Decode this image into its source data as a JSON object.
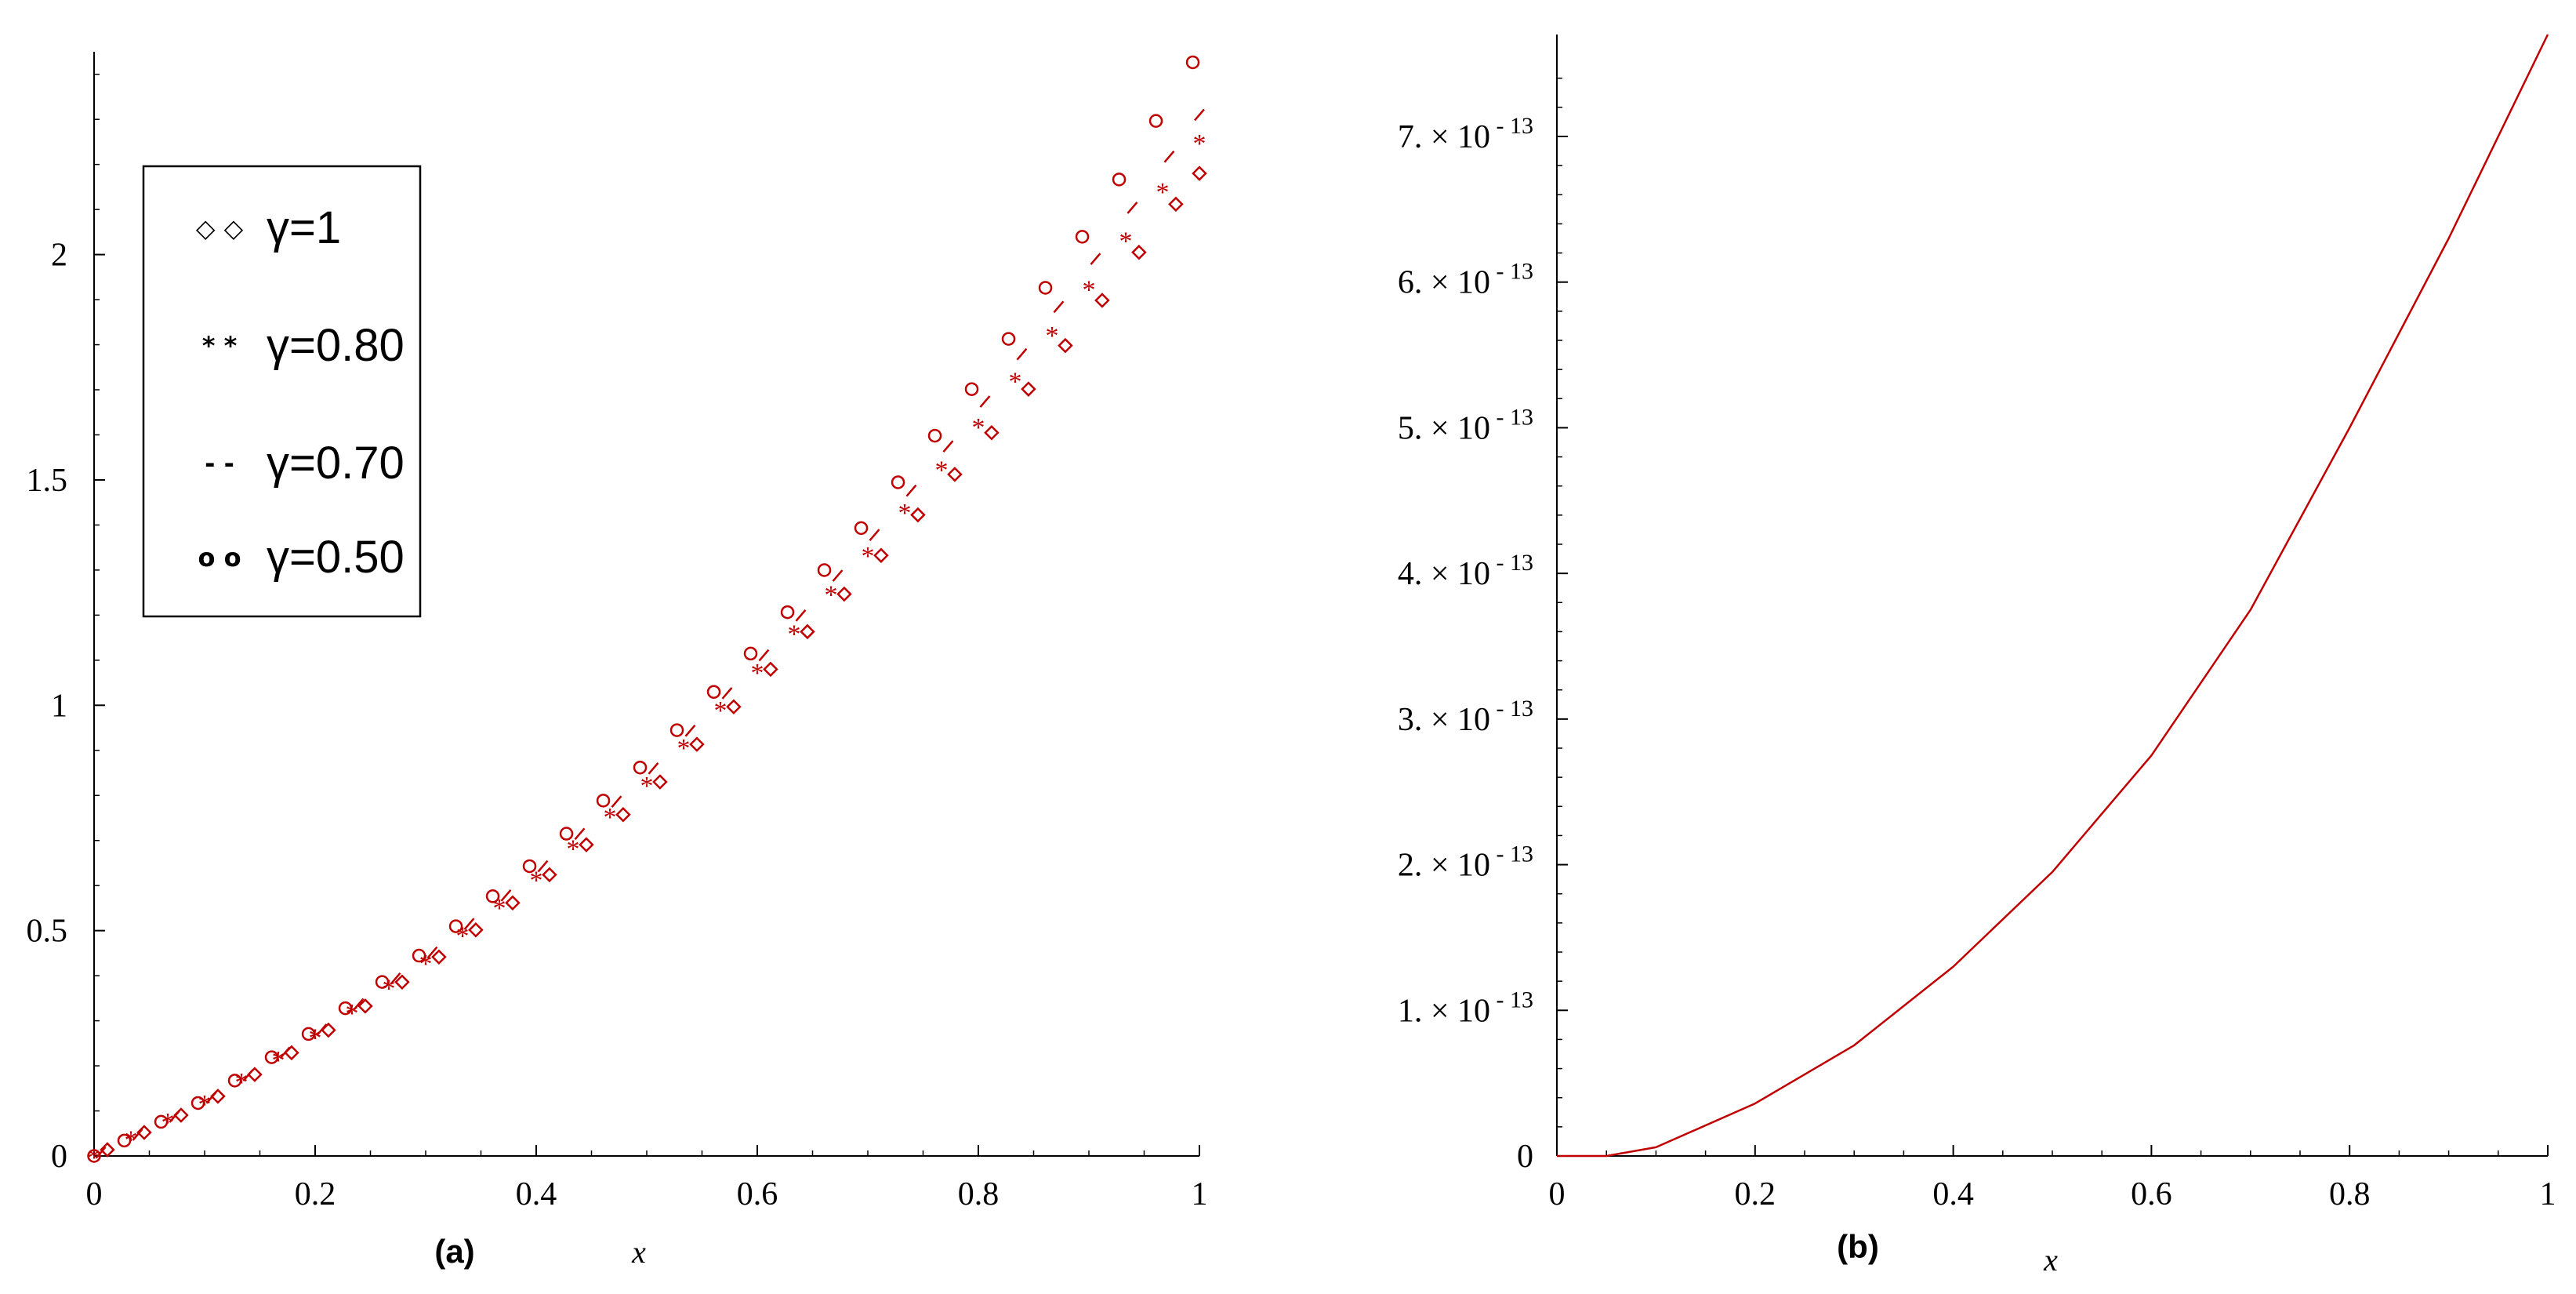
{
  "chart_data": [
    {
      "type": "scatter",
      "panel_label": "(a)",
      "xlabel": "x",
      "ylabel": "",
      "xlim": [
        0,
        1
      ],
      "ylim": [
        0,
        2.45
      ],
      "x_ticks": [
        "0",
        "0.2",
        "0.4",
        "0.6",
        "0.8",
        "1"
      ],
      "y_ticks": [
        "0",
        "0.5",
        "1",
        "1.5",
        "2"
      ],
      "grid": false,
      "legend_position": "top-left",
      "line_color": "#c00000",
      "legend": [
        {
          "label": "γ=1",
          "symbol": "◇ ◇",
          "marker": "diamond"
        },
        {
          "label": "γ=0.80",
          "symbol": "* *",
          "marker": "asterisk"
        },
        {
          "label": "γ=0.70",
          "symbol": "- -",
          "marker": "dash"
        },
        {
          "label": "γ=0.50",
          "symbol": "o o",
          "marker": "circle"
        }
      ],
      "x": [
        0,
        0.1,
        0.2,
        0.3,
        0.4,
        0.5,
        0.6,
        0.7,
        0.8,
        0.9,
        1.0
      ],
      "series": [
        {
          "name": "γ=1",
          "marker": "diamond",
          "values": [
            0,
            0.115,
            0.26,
            0.42,
            0.6,
            0.8,
            1.05,
            1.3,
            1.57,
            1.86,
            2.18
          ]
        },
        {
          "name": "γ=0.80",
          "marker": "asterisk",
          "values": [
            0,
            0.118,
            0.265,
            0.43,
            0.615,
            0.825,
            1.075,
            1.335,
            1.62,
            1.925,
            2.25
          ]
        },
        {
          "name": "γ=0.70",
          "marker": "dash",
          "values": [
            0,
            0.12,
            0.27,
            0.44,
            0.63,
            0.845,
            1.095,
            1.36,
            1.655,
            1.97,
            2.31
          ]
        },
        {
          "name": "γ=0.50",
          "marker": "circle",
          "values": [
            0,
            0.125,
            0.28,
            0.455,
            0.655,
            0.875,
            1.13,
            1.41,
            1.72,
            2.06,
            2.45
          ]
        }
      ]
    },
    {
      "type": "line",
      "panel_label": "(b)",
      "xlabel": "x",
      "ylabel": "",
      "xlim": [
        0,
        1
      ],
      "ylim": [
        0,
        7.7e-13
      ],
      "x_ticks": [
        "0",
        "0.2",
        "0.4",
        "0.6",
        "0.8",
        "1"
      ],
      "y_ticks": [
        {
          "mantissa": "0",
          "exponent": ""
        },
        {
          "mantissa": "1. × 10",
          "exponent": "- 13"
        },
        {
          "mantissa": "2. × 10",
          "exponent": "- 13"
        },
        {
          "mantissa": "3. × 10",
          "exponent": "- 13"
        },
        {
          "mantissa": "4. × 10",
          "exponent": "- 13"
        },
        {
          "mantissa": "5. × 10",
          "exponent": "- 13"
        },
        {
          "mantissa": "6. × 10",
          "exponent": "- 13"
        },
        {
          "mantissa": "7. × 10",
          "exponent": "- 13"
        }
      ],
      "grid": false,
      "line_color": "#c00000",
      "x": [
        0.0,
        0.05,
        0.1,
        0.2,
        0.3,
        0.4,
        0.5,
        0.6,
        0.7,
        0.8,
        0.9,
        1.0
      ],
      "series": [
        {
          "values": [
            0,
            0,
            6e-15,
            3.6e-14,
            7.6e-14,
            1.3e-13,
            1.95e-13,
            2.75e-13,
            3.75e-13,
            5e-13,
            6.3e-13,
            7.7e-13
          ]
        }
      ]
    }
  ]
}
